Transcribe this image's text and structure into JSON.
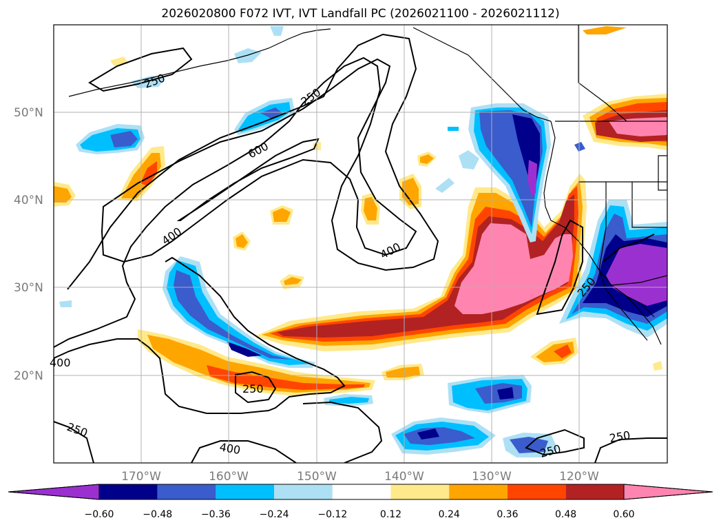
{
  "title": "2026020800 F072 IVT, IVT Landfall PC (2026021100 - 2026021112)",
  "lat_labels": [
    "50°N",
    "40°N",
    "30°N",
    "20°N"
  ],
  "lon_labels": [
    "170°W",
    "160°W",
    "150°W",
    "140°W",
    "130°W",
    "120°W"
  ],
  "contour_labels": [
    "250",
    "250",
    "600",
    "400",
    "400",
    "400",
    "250",
    "250",
    "400",
    "250",
    "250",
    "250"
  ],
  "colorbar": {
    "ticks": [
      "−0.60",
      "−0.48",
      "−0.36",
      "−0.24",
      "−0.12",
      "0.12",
      "0.24",
      "0.36",
      "0.48",
      "0.60"
    ],
    "colors": [
      "#9b30d0",
      "#00008b",
      "#3a5ccc",
      "#00bfff",
      "#ade0f5",
      "#ffffff",
      "#ffe98a",
      "#ffa500",
      "#ff4500",
      "#b22222",
      "#ff85b0"
    ]
  },
  "colors": {
    "pink": "#ff85b0",
    "darkred": "#b22222",
    "orangered": "#ff4500",
    "orange": "#ffa500",
    "yellow": "#ffe98a",
    "purple": "#9b30d0",
    "navy": "#00008b",
    "royal": "#3a5ccc",
    "sky": "#00bfff",
    "pale": "#ade0f5"
  }
}
